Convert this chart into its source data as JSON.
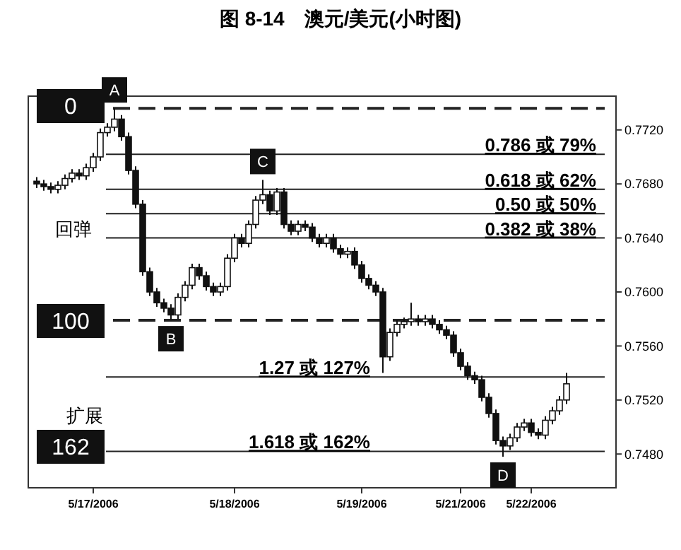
{
  "chart_data": {
    "type": "candlestick",
    "title": "图 8-14　澳元/美元(小时图)",
    "categories": [
      null,
      null,
      null,
      null,
      null,
      null,
      null,
      null,
      "5/17/2006",
      null,
      null,
      null,
      null,
      null,
      null,
      null,
      null,
      null,
      null,
      null,
      null,
      null,
      null,
      null,
      null,
      null,
      null,
      null,
      "5/18/2006",
      null,
      null,
      null,
      null,
      null,
      null,
      null,
      null,
      null,
      null,
      null,
      null,
      null,
      null,
      null,
      null,
      null,
      "5/19/2006",
      null,
      null,
      null,
      null,
      null,
      null,
      null,
      null,
      null,
      null,
      null,
      null,
      null,
      "5/21/2006",
      null,
      null,
      null,
      null,
      null,
      null,
      null,
      null,
      null,
      "5/22/2006",
      null,
      null,
      null,
      null,
      null
    ],
    "ohlc": [
      [
        0.7682,
        0.7685,
        0.7677,
        0.768
      ],
      [
        0.768,
        0.7683,
        0.7675,
        0.7678
      ],
      [
        0.7678,
        0.7681,
        0.7673,
        0.7676
      ],
      [
        0.7676,
        0.7682,
        0.7673,
        0.7679
      ],
      [
        0.7679,
        0.7687,
        0.7676,
        0.7684
      ],
      [
        0.7684,
        0.7691,
        0.7681,
        0.7688
      ],
      [
        0.7688,
        0.7691,
        0.7683,
        0.7686
      ],
      [
        0.7686,
        0.7695,
        0.7683,
        0.7692
      ],
      [
        0.7692,
        0.7703,
        0.7689,
        0.77
      ],
      [
        0.77,
        0.7721,
        0.7697,
        0.7718
      ],
      [
        0.7718,
        0.7725,
        0.7715,
        0.7722
      ],
      [
        0.7722,
        0.7736,
        0.7719,
        0.7728
      ],
      [
        0.7728,
        0.7731,
        0.7712,
        0.7715
      ],
      [
        0.7715,
        0.7718,
        0.7687,
        0.769
      ],
      [
        0.769,
        0.7693,
        0.7662,
        0.7665
      ],
      [
        0.7665,
        0.7668,
        0.7612,
        0.7615
      ],
      [
        0.7615,
        0.7618,
        0.7597,
        0.76
      ],
      [
        0.76,
        0.7603,
        0.7589,
        0.7592
      ],
      [
        0.7592,
        0.7595,
        0.7585,
        0.7588
      ],
      [
        0.7588,
        0.7591,
        0.7579,
        0.7583
      ],
      [
        0.7583,
        0.7599,
        0.758,
        0.7596
      ],
      [
        0.7596,
        0.7608,
        0.7593,
        0.7605
      ],
      [
        0.7605,
        0.7621,
        0.7602,
        0.7618
      ],
      [
        0.7618,
        0.7621,
        0.7609,
        0.7612
      ],
      [
        0.7612,
        0.7615,
        0.7601,
        0.7604
      ],
      [
        0.7604,
        0.7607,
        0.7597,
        0.76
      ],
      [
        0.76,
        0.7607,
        0.7597,
        0.7604
      ],
      [
        0.7604,
        0.7628,
        0.7601,
        0.7625
      ],
      [
        0.7625,
        0.7643,
        0.7622,
        0.764
      ],
      [
        0.764,
        0.7643,
        0.7633,
        0.7636
      ],
      [
        0.7636,
        0.7653,
        0.7633,
        0.765
      ],
      [
        0.765,
        0.7671,
        0.7647,
        0.7668
      ],
      [
        0.7668,
        0.7683,
        0.7665,
        0.7672
      ],
      [
        0.7672,
        0.7675,
        0.7657,
        0.766
      ],
      [
        0.766,
        0.7677,
        0.7657,
        0.7674
      ],
      [
        0.7674,
        0.7677,
        0.7647,
        0.765
      ],
      [
        0.765,
        0.7653,
        0.7642,
        0.7645
      ],
      [
        0.7645,
        0.7653,
        0.7642,
        0.765
      ],
      [
        0.765,
        0.7653,
        0.7645,
        0.7648
      ],
      [
        0.7648,
        0.7651,
        0.7637,
        0.764
      ],
      [
        0.764,
        0.7643,
        0.7633,
        0.7636
      ],
      [
        0.7636,
        0.7643,
        0.7633,
        0.764
      ],
      [
        0.764,
        0.7643,
        0.7629,
        0.7632
      ],
      [
        0.7632,
        0.7635,
        0.7625,
        0.7628
      ],
      [
        0.7628,
        0.7633,
        0.7625,
        0.763
      ],
      [
        0.763,
        0.7633,
        0.7617,
        0.762
      ],
      [
        0.762,
        0.7623,
        0.7607,
        0.761
      ],
      [
        0.761,
        0.7613,
        0.7602,
        0.7605
      ],
      [
        0.7605,
        0.7608,
        0.7597,
        0.76
      ],
      [
        0.76,
        0.7603,
        0.754,
        0.7552
      ],
      [
        0.7552,
        0.7573,
        0.7549,
        0.757
      ],
      [
        0.757,
        0.7579,
        0.7567,
        0.7576
      ],
      [
        0.7576,
        0.7581,
        0.7573,
        0.7578
      ],
      [
        0.7578,
        0.7592,
        0.7575,
        0.758
      ],
      [
        0.758,
        0.7583,
        0.7575,
        0.7578
      ],
      [
        0.7578,
        0.7583,
        0.7575,
        0.758
      ],
      [
        0.758,
        0.7583,
        0.7573,
        0.7576
      ],
      [
        0.7576,
        0.7579,
        0.7569,
        0.7572
      ],
      [
        0.7572,
        0.7575,
        0.7565,
        0.7568
      ],
      [
        0.7568,
        0.7571,
        0.7552,
        0.7555
      ],
      [
        0.7555,
        0.7558,
        0.7542,
        0.7545
      ],
      [
        0.7545,
        0.7548,
        0.7535,
        0.7538
      ],
      [
        0.7538,
        0.7541,
        0.7532,
        0.7535
      ],
      [
        0.7535,
        0.7538,
        0.7519,
        0.7522
      ],
      [
        0.7522,
        0.7525,
        0.7507,
        0.751
      ],
      [
        0.751,
        0.7513,
        0.7487,
        0.749
      ],
      [
        0.749,
        0.7493,
        0.7478,
        0.7486
      ],
      [
        0.7486,
        0.7495,
        0.7483,
        0.7492
      ],
      [
        0.7492,
        0.7503,
        0.7489,
        0.75
      ],
      [
        0.75,
        0.7506,
        0.7497,
        0.7503
      ],
      [
        0.7503,
        0.7506,
        0.7493,
        0.7496
      ],
      [
        0.7496,
        0.7499,
        0.7491,
        0.7494
      ],
      [
        0.7494,
        0.7508,
        0.7491,
        0.7505
      ],
      [
        0.7505,
        0.7515,
        0.7502,
        0.7512
      ],
      [
        0.7512,
        0.7523,
        0.7509,
        0.752
      ],
      [
        0.752,
        0.754,
        0.7517,
        0.7532
      ]
    ],
    "ylim": [
      0.7455,
      0.7745
    ],
    "yticks": [
      {
        "value": 0.748,
        "label": "0.7480"
      },
      {
        "value": 0.752,
        "label": "0.7520"
      },
      {
        "value": 0.756,
        "label": "0.7560"
      },
      {
        "value": 0.76,
        "label": "0.7600"
      },
      {
        "value": 0.764,
        "label": "0.7640"
      },
      {
        "value": 0.768,
        "label": "0.7680"
      },
      {
        "value": 0.772,
        "label": "0.7720"
      }
    ],
    "ref_lines": [
      {
        "axis": "y",
        "value": 0.7736,
        "line_style": "dashed"
      },
      {
        "axis": "y",
        "value": 0.7702,
        "label": "0.786 或 79%",
        "line_style": "solid"
      },
      {
        "axis": "y",
        "value": 0.7676,
        "label": "0.618 或 62%",
        "line_style": "solid"
      },
      {
        "axis": "y",
        "value": 0.7658,
        "label": "0.50 或 50%",
        "line_style": "solid"
      },
      {
        "axis": "y",
        "value": 0.764,
        "label": "0.382 或 38%",
        "line_style": "solid"
      },
      {
        "axis": "y",
        "value": 0.7579,
        "line_style": "dashed"
      },
      {
        "axis": "y",
        "value": 0.7537,
        "label": "1.27 或 127%",
        "line_style": "solid"
      },
      {
        "axis": "y",
        "value": 0.7482,
        "label": "1.618 或 162%",
        "line_style": "solid"
      }
    ],
    "annotations": [
      {
        "text": "A",
        "y": 0.7736
      },
      {
        "text": "B",
        "y": 0.7579
      },
      {
        "text": "C",
        "y": 0.7683
      },
      {
        "text": "D",
        "y": 0.7478
      },
      "0",
      "100",
      "162",
      "回弹",
      "扩展"
    ]
  }
}
